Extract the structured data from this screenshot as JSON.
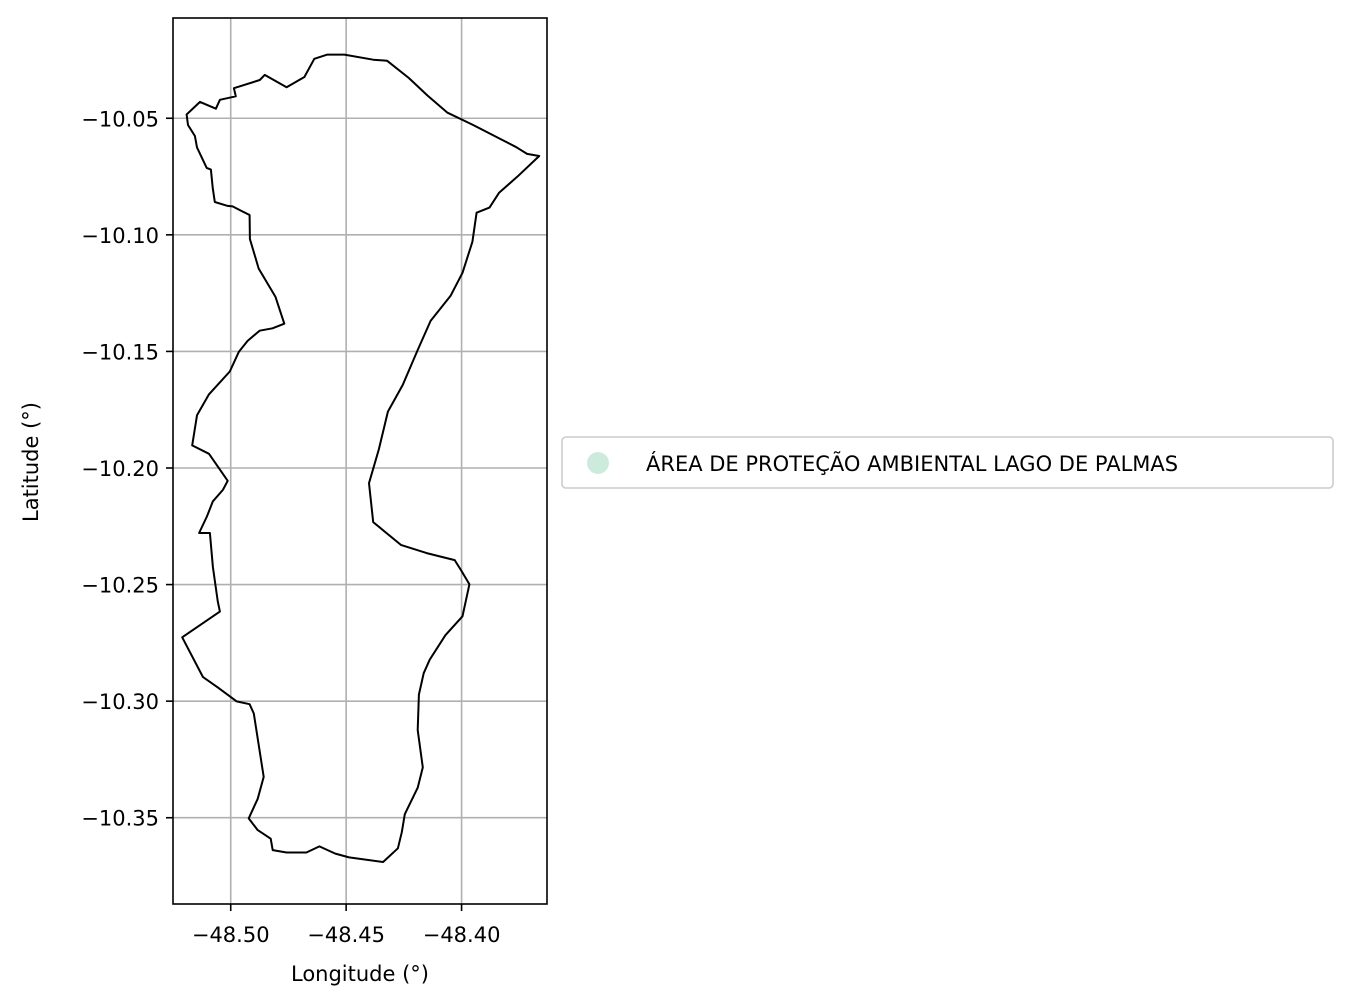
{
  "chart_data": {
    "type": "map",
    "xlabel": "Longitude (°)",
    "ylabel": "Latitude (°)",
    "xlim": [
      -48.525,
      -48.363
    ],
    "ylim": [
      -10.387,
      -10.007
    ],
    "xticks": [
      -48.5,
      -48.45,
      -48.4
    ],
    "xtick_labels": [
      "−48.50",
      "−48.45",
      "−48.40"
    ],
    "yticks": [
      -10.05,
      -10.1,
      -10.15,
      -10.2,
      -10.25,
      -10.3,
      -10.35
    ],
    "ytick_labels": [
      "−10.05",
      "−10.10",
      "−10.15",
      "−10.20",
      "−10.25",
      "−10.30",
      "−10.35"
    ],
    "grid": true,
    "legend_placement": "center-right outside",
    "series": [
      {
        "name": "ÁREA DE PROTEÇÃO AMBIENTAL LAGO DE PALMAS",
        "fill_color": "#cdebdd",
        "edge_color": "#000000",
        "outline": [
          [
            -48.4986,
            -10.0371
          ],
          [
            -48.4874,
            -10.0336
          ],
          [
            -48.4853,
            -10.0314
          ],
          [
            -48.4758,
            -10.0367
          ],
          [
            -48.4681,
            -10.0323
          ],
          [
            -48.4638,
            -10.0245
          ],
          [
            -48.4581,
            -10.0227
          ],
          [
            -48.4508,
            -10.0227
          ],
          [
            -48.4383,
            -10.0249
          ],
          [
            -48.4323,
            -10.0253
          ],
          [
            -48.4229,
            -10.0327
          ],
          [
            -48.4147,
            -10.0403
          ],
          [
            -48.4061,
            -10.0476
          ],
          [
            -48.3953,
            -10.0527
          ],
          [
            -48.3832,
            -10.0589
          ],
          [
            -48.3763,
            -10.0624
          ],
          [
            -48.3716,
            -10.0653
          ],
          [
            -48.3664,
            -10.0662
          ],
          [
            -48.3759,
            -10.0751
          ],
          [
            -48.3837,
            -10.0819
          ],
          [
            -48.3879,
            -10.0883
          ],
          [
            -48.3935,
            -10.0905
          ],
          [
            -48.3953,
            -10.103
          ],
          [
            -48.3996,
            -10.1163
          ],
          [
            -48.4048,
            -10.1262
          ],
          [
            -48.4134,
            -10.1369
          ],
          [
            -48.419,
            -10.1494
          ],
          [
            -48.4255,
            -10.1644
          ],
          [
            -48.4319,
            -10.1758
          ],
          [
            -48.4358,
            -10.1919
          ],
          [
            -48.4401,
            -10.2065
          ],
          [
            -48.4383,
            -10.2232
          ],
          [
            -48.4263,
            -10.233
          ],
          [
            -48.4151,
            -10.2365
          ],
          [
            -48.403,
            -10.2395
          ],
          [
            -48.4,
            -10.2442
          ],
          [
            -48.3966,
            -10.2499
          ],
          [
            -48.3996,
            -10.2636
          ],
          [
            -48.407,
            -10.2717
          ],
          [
            -48.4138,
            -10.2822
          ],
          [
            -48.4164,
            -10.288
          ],
          [
            -48.4185,
            -10.2972
          ],
          [
            -48.419,
            -10.3124
          ],
          [
            -48.4168,
            -10.3284
          ],
          [
            -48.419,
            -10.3371
          ],
          [
            -48.4246,
            -10.3485
          ],
          [
            -48.4259,
            -10.3562
          ],
          [
            -48.4276,
            -10.3631
          ],
          [
            -48.434,
            -10.369
          ],
          [
            -48.4487,
            -10.367
          ],
          [
            -48.4547,
            -10.3654
          ],
          [
            -48.4616,
            -10.3623
          ],
          [
            -48.4672,
            -10.3649
          ],
          [
            -48.4758,
            -10.3649
          ],
          [
            -48.4818,
            -10.3639
          ],
          [
            -48.4827,
            -10.359
          ],
          [
            -48.4883,
            -10.3553
          ],
          [
            -48.4922,
            -10.3503
          ],
          [
            -48.4883,
            -10.3419
          ],
          [
            -48.4857,
            -10.3325
          ],
          [
            -48.49,
            -10.3053
          ],
          [
            -48.4918,
            -10.3013
          ],
          [
            -48.4974,
            -10.3001
          ],
          [
            -48.5056,
            -10.2941
          ],
          [
            -48.512,
            -10.2897
          ],
          [
            -48.521,
            -10.2726
          ],
          [
            -48.5047,
            -10.2616
          ],
          [
            -48.5056,
            -10.2573
          ],
          [
            -48.5077,
            -10.2425
          ],
          [
            -48.509,
            -10.2279
          ],
          [
            -48.5137,
            -10.2279
          ],
          [
            -48.5103,
            -10.2208
          ],
          [
            -48.5077,
            -10.2143
          ],
          [
            -48.5034,
            -10.2094
          ],
          [
            -48.5013,
            -10.2055
          ],
          [
            -48.5094,
            -10.1939
          ],
          [
            -48.5167,
            -10.1903
          ],
          [
            -48.5146,
            -10.1774
          ],
          [
            -48.5094,
            -10.1684
          ],
          [
            -48.5004,
            -10.1586
          ],
          [
            -48.4965,
            -10.1502
          ],
          [
            -48.4927,
            -10.1455
          ],
          [
            -48.4875,
            -10.1411
          ],
          [
            -48.4819,
            -10.1401
          ],
          [
            -48.4768,
            -10.1381
          ],
          [
            -48.4806,
            -10.1266
          ],
          [
            -48.4879,
            -10.1145
          ],
          [
            -48.4917,
            -10.1018
          ],
          [
            -48.4918,
            -10.0915
          ],
          [
            -48.4952,
            -10.0898
          ],
          [
            -48.4992,
            -10.0878
          ],
          [
            -48.5013,
            -10.0876
          ],
          [
            -48.5069,
            -10.0859
          ],
          [
            -48.5078,
            -10.0798
          ],
          [
            -48.5086,
            -10.072
          ],
          [
            -48.5104,
            -10.0713
          ],
          [
            -48.5146,
            -10.0625
          ],
          [
            -48.5155,
            -10.0576
          ],
          [
            -48.5185,
            -10.0529
          ],
          [
            -48.5191,
            -10.0484
          ],
          [
            -48.5133,
            -10.043
          ],
          [
            -48.5064,
            -10.0459
          ],
          [
            -48.5047,
            -10.0421
          ],
          [
            -48.4978,
            -10.0406
          ],
          [
            -48.4986,
            -10.0371
          ]
        ]
      }
    ],
    "legend": [
      {
        "label": "ÁREA DE PROTEÇÃO AMBIENTAL LAGO DE PALMAS",
        "color": "#cdebdd"
      }
    ]
  }
}
